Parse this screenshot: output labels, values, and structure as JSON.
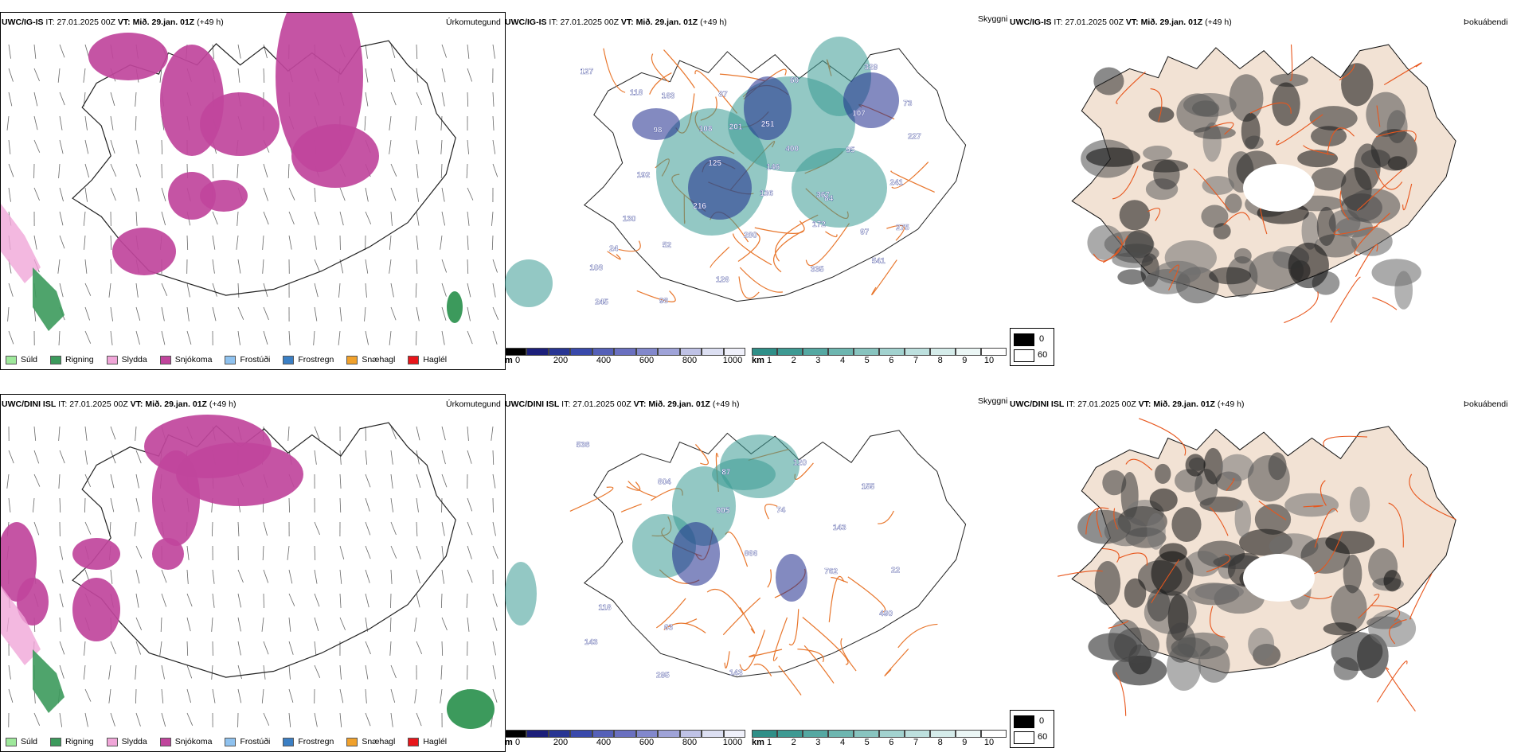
{
  "panels": [
    {
      "row": "top",
      "model": "UWC/IG-IS",
      "it_label": "IT:",
      "it": "27.01.2025 00Z",
      "vt_label": "VT:",
      "vt": "Mið. 29.jan. 01Z",
      "lead": "(+49 h)",
      "precip_title": "Úrkomutegund",
      "skyggni_title": "Skyggni",
      "fog_title": "Þokuábendi"
    },
    {
      "row": "bottom",
      "model": "UWC/DINI ISL",
      "it_label": "IT:",
      "it": "27.01.2025 00Z",
      "vt_label": "VT:",
      "vt": "Mið. 29.jan. 01Z",
      "lead": "(+49 h)",
      "precip_title": "Úrkomutegund",
      "skyggni_title": "Skyggni",
      "fog_title": "Þokuábendi"
    }
  ],
  "precip_legend": [
    {
      "label": "Súld",
      "color": "#9ee89b"
    },
    {
      "label": "Rigning",
      "color": "#3c9a5c"
    },
    {
      "label": "Slydda",
      "color": "#f0a6d8"
    },
    {
      "label": "Snjókoma",
      "color": "#c0459c"
    },
    {
      "label": "Frostúði",
      "color": "#8fc2ef"
    },
    {
      "label": "Frostregn",
      "color": "#3b7fc4"
    },
    {
      "label": "Snæhagl",
      "color": "#f0a12c"
    },
    {
      "label": "Haglél",
      "color": "#e8161b"
    }
  ],
  "meters_bar": {
    "unit": "m",
    "ticks": [
      "0",
      "200",
      "400",
      "600",
      "800",
      "1000"
    ]
  },
  "km_bar": {
    "unit": "km",
    "ticks": [
      "1",
      "2",
      "3",
      "4",
      "5",
      "6",
      "7",
      "8",
      "9",
      "10"
    ]
  },
  "fog_legend": {
    "high": "0",
    "low": "60"
  },
  "visibility_labels_top": [
    "127",
    "118",
    "108",
    "146",
    "84",
    "97",
    "108",
    "98",
    "87",
    "251",
    "95",
    "241",
    "130",
    "52",
    "126",
    "60",
    "107",
    "227",
    "192",
    "216",
    "280",
    "335",
    "329",
    "73",
    "98",
    "125",
    "136",
    "172",
    "541",
    "245",
    "163",
    "201",
    "400",
    "367",
    "275",
    "24"
  ],
  "visibility_labels_bottom": [
    "538",
    "804",
    "905",
    "866",
    "762",
    "490",
    "143",
    "295",
    "87",
    "74",
    "143",
    "22",
    "118",
    "63",
    "143",
    "120",
    "155"
  ],
  "colors": {
    "snow": "#c0459c",
    "rain": "#3c9a5c",
    "sleet": "#f0a6d8",
    "teal": "#3a9a94",
    "navy": "#1e2a8c",
    "roads": "#e8762c",
    "land": "#f2e2d4"
  }
}
